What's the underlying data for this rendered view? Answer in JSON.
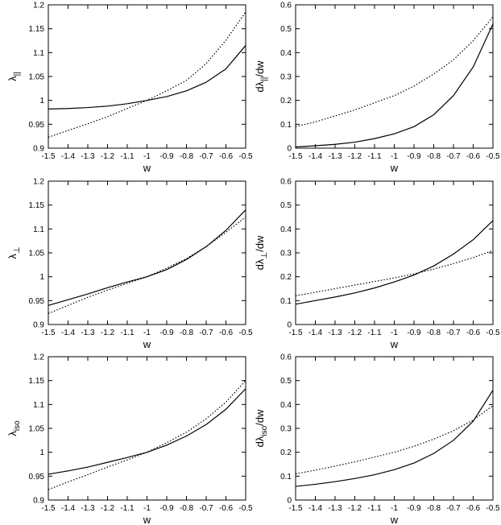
{
  "chart_data": [
    {
      "type": "line",
      "xlabel": "w",
      "ylabel": "λ",
      "ylabel_sub": "||",
      "xlim": [
        -1.5,
        -0.5
      ],
      "ylim": [
        0.9,
        1.2
      ],
      "xticks": [
        "-1.5",
        "-1.4",
        "-1.3",
        "-1.2",
        "-1.1",
        "-1",
        "-0.9",
        "-0.8",
        "-0.7",
        "-0.6",
        "-0.5"
      ],
      "yticks": [
        "0.9",
        "0.95",
        "1",
        "1.05",
        "1.1",
        "1.15",
        "1.2"
      ],
      "series": [
        {
          "style": "solid",
          "x": [
            -1.5,
            -1.4,
            -1.3,
            -1.2,
            -1.1,
            -1.0,
            -0.9,
            -0.8,
            -0.7,
            -0.6,
            -0.5
          ],
          "values": [
            0.982,
            0.983,
            0.985,
            0.988,
            0.993,
            1.0,
            1.008,
            1.02,
            1.038,
            1.066,
            1.115
          ]
        },
        {
          "style": "dotted",
          "x": [
            -1.5,
            -1.4,
            -1.3,
            -1.2,
            -1.1,
            -1.0,
            -0.9,
            -0.8,
            -0.7,
            -0.6,
            -0.5
          ],
          "values": [
            0.923,
            0.937,
            0.951,
            0.966,
            0.983,
            1.0,
            1.02,
            1.042,
            1.077,
            1.126,
            1.185
          ]
        }
      ]
    },
    {
      "type": "line",
      "xlabel": "w",
      "ylabel": "dλ",
      "ylabel_sub": "||",
      "ylabel_suffix": "/dw",
      "xlim": [
        -1.5,
        -0.5
      ],
      "ylim": [
        0,
        0.6
      ],
      "xticks": [
        "-1.5",
        "-1.4",
        "-1.3",
        "-1.2",
        "-1.1",
        "-1",
        "-0.9",
        "-0.8",
        "-0.7",
        "-0.6",
        "-0.5"
      ],
      "yticks": [
        "0",
        "0.1",
        "0.2",
        "0.3",
        "0.4",
        "0.5",
        "0.6"
      ],
      "series": [
        {
          "style": "solid",
          "x": [
            -1.5,
            -1.4,
            -1.3,
            -1.2,
            -1.1,
            -1.0,
            -0.9,
            -0.8,
            -0.7,
            -0.6,
            -0.5
          ],
          "values": [
            0.005,
            0.01,
            0.016,
            0.025,
            0.04,
            0.06,
            0.09,
            0.14,
            0.22,
            0.34,
            0.52
          ]
        },
        {
          "style": "dotted",
          "x": [
            -1.5,
            -1.4,
            -1.3,
            -1.2,
            -1.1,
            -1.0,
            -0.9,
            -0.8,
            -0.7,
            -0.6,
            -0.5
          ],
          "values": [
            0.09,
            0.11,
            0.135,
            0.16,
            0.19,
            0.22,
            0.26,
            0.31,
            0.37,
            0.45,
            0.55
          ]
        }
      ]
    },
    {
      "type": "line",
      "xlabel": "w",
      "ylabel": "λ",
      "ylabel_sub": "⊥",
      "xlim": [
        -1.5,
        -0.5
      ],
      "ylim": [
        0.9,
        1.2
      ],
      "xticks": [
        "-1.5",
        "-1.4",
        "-1.3",
        "-1.2",
        "-1.1",
        "-1",
        "-0.9",
        "-0.8",
        "-0.7",
        "-0.6",
        "-0.5"
      ],
      "yticks": [
        "0.9",
        "0.95",
        "1",
        "1.05",
        "1.1",
        "1.15",
        "1.2"
      ],
      "series": [
        {
          "style": "solid",
          "x": [
            -1.5,
            -1.4,
            -1.3,
            -1.2,
            -1.1,
            -1.0,
            -0.9,
            -0.8,
            -0.7,
            -0.6,
            -0.5
          ],
          "values": [
            0.94,
            0.952,
            0.964,
            0.977,
            0.989,
            1.0,
            1.015,
            1.036,
            1.063,
            1.097,
            1.14
          ]
        },
        {
          "style": "dotted",
          "x": [
            -1.5,
            -1.4,
            -1.3,
            -1.2,
            -1.1,
            -1.0,
            -0.9,
            -0.8,
            -0.7,
            -0.6,
            -0.5
          ],
          "values": [
            0.923,
            0.94,
            0.957,
            0.972,
            0.986,
            1.0,
            1.018,
            1.038,
            1.063,
            1.093,
            1.125
          ]
        }
      ]
    },
    {
      "type": "line",
      "xlabel": "w",
      "ylabel": "dλ",
      "ylabel_sub": "⊥",
      "ylabel_suffix": "/dw",
      "xlim": [
        -1.5,
        -0.5
      ],
      "ylim": [
        0,
        0.6
      ],
      "xticks": [
        "-1.5",
        "-1.4",
        "-1.3",
        "-1.2",
        "-1.1",
        "-1",
        "-0.9",
        "-0.8",
        "-0.7",
        "-0.6",
        "-0.5"
      ],
      "yticks": [
        "0",
        "0.1",
        "0.2",
        "0.3",
        "0.4",
        "0.5",
        "0.6"
      ],
      "series": [
        {
          "style": "solid",
          "x": [
            -1.5,
            -1.4,
            -1.3,
            -1.2,
            -1.1,
            -1.0,
            -0.9,
            -0.8,
            -0.7,
            -0.6,
            -0.5
          ],
          "values": [
            0.085,
            0.1,
            0.115,
            0.132,
            0.153,
            0.178,
            0.207,
            0.245,
            0.295,
            0.355,
            0.435
          ]
        },
        {
          "style": "dotted",
          "x": [
            -1.5,
            -1.4,
            -1.3,
            -1.2,
            -1.1,
            -1.0,
            -0.9,
            -0.8,
            -0.7,
            -0.6,
            -0.5
          ],
          "values": [
            0.12,
            0.135,
            0.15,
            0.165,
            0.18,
            0.195,
            0.212,
            0.232,
            0.255,
            0.28,
            0.31
          ]
        }
      ]
    },
    {
      "type": "line",
      "xlabel": "w",
      "ylabel": "λ",
      "ylabel_sub": "iso",
      "xlim": [
        -1.5,
        -0.5
      ],
      "ylim": [
        0.9,
        1.2
      ],
      "xticks": [
        "-1.5",
        "-1.4",
        "-1.3",
        "-1.2",
        "-1.1",
        "-1",
        "-0.9",
        "-0.8",
        "-0.7",
        "-0.6",
        "-0.5"
      ],
      "yticks": [
        "0.9",
        "0.95",
        "1",
        "1.05",
        "1.1",
        "1.15",
        "1.2"
      ],
      "series": [
        {
          "style": "solid",
          "x": [
            -1.5,
            -1.4,
            -1.3,
            -1.2,
            -1.1,
            -1.0,
            -0.9,
            -0.8,
            -0.7,
            -0.6,
            -0.5
          ],
          "values": [
            0.954,
            0.961,
            0.969,
            0.979,
            0.989,
            1.0,
            1.015,
            1.034,
            1.058,
            1.09,
            1.133
          ]
        },
        {
          "style": "dotted",
          "x": [
            -1.5,
            -1.4,
            -1.3,
            -1.2,
            -1.1,
            -1.0,
            -0.9,
            -0.8,
            -0.7,
            -0.6,
            -0.5
          ],
          "values": [
            0.922,
            0.938,
            0.953,
            0.969,
            0.984,
            1.0,
            1.02,
            1.042,
            1.07,
            1.105,
            1.15
          ]
        }
      ]
    },
    {
      "type": "line",
      "xlabel": "w",
      "ylabel": "dλ",
      "ylabel_sub": "iso",
      "ylabel_suffix": "/dw",
      "xlim": [
        -1.5,
        -0.5
      ],
      "ylim": [
        0,
        0.6
      ],
      "xticks": [
        "-1.5",
        "-1.4",
        "-1.3",
        "-1.2",
        "-1.1",
        "-1",
        "-0.9",
        "-0.8",
        "-0.7",
        "-0.6",
        "-0.5"
      ],
      "yticks": [
        "0",
        "0.1",
        "0.2",
        "0.3",
        "0.4",
        "0.5",
        "0.6"
      ],
      "series": [
        {
          "style": "solid",
          "x": [
            -1.5,
            -1.4,
            -1.3,
            -1.2,
            -1.1,
            -1.0,
            -0.9,
            -0.8,
            -0.7,
            -0.6,
            -0.5
          ],
          "values": [
            0.057,
            0.066,
            0.077,
            0.09,
            0.106,
            0.127,
            0.155,
            0.195,
            0.25,
            0.33,
            0.46
          ]
        },
        {
          "style": "dotted",
          "x": [
            -1.5,
            -1.4,
            -1.3,
            -1.2,
            -1.1,
            -1.0,
            -0.9,
            -0.8,
            -0.7,
            -0.6,
            -0.5
          ],
          "values": [
            0.11,
            0.125,
            0.142,
            0.16,
            0.18,
            0.2,
            0.225,
            0.255,
            0.29,
            0.335,
            0.395
          ]
        }
      ]
    }
  ]
}
